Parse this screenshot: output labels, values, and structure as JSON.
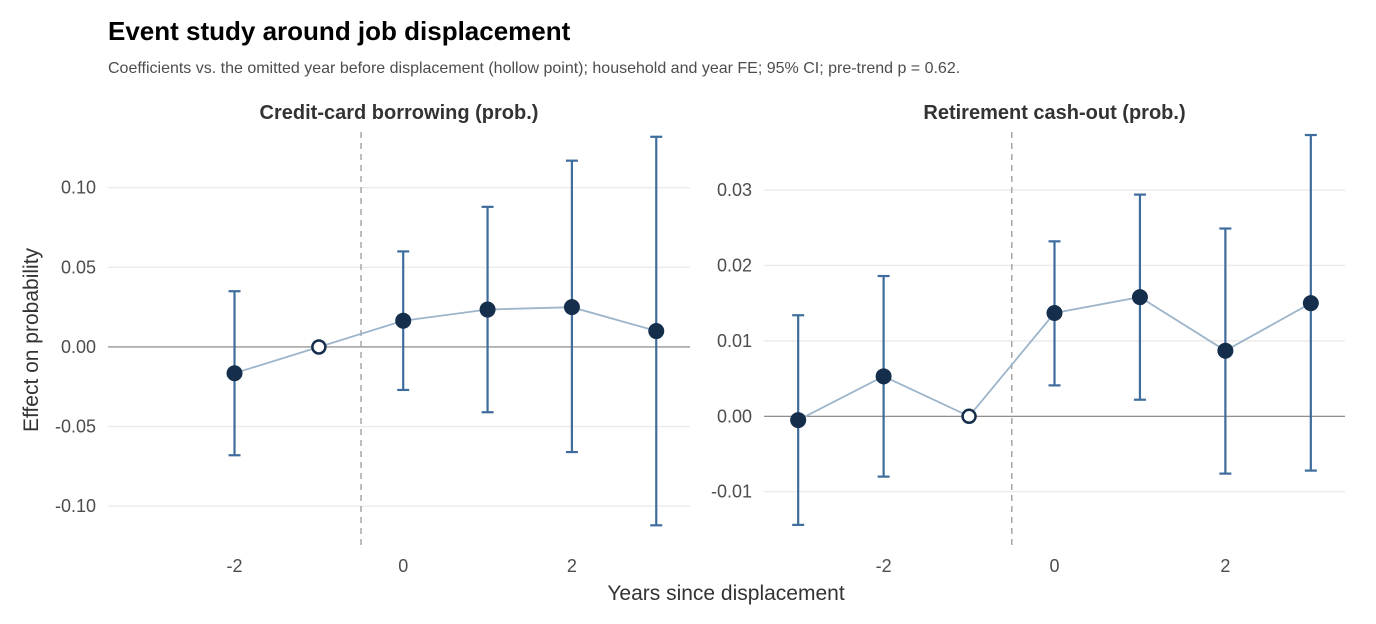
{
  "chart_data": {
    "type": "scatter",
    "title": "Event study around job displacement",
    "subtitle": "Coefficients vs. the omitted year before displacement (hollow point); household and year FE; 95% CI; pre-trend p = 0.62.",
    "xlabel": "Years since displacement",
    "ylabel": "Effect on probability",
    "grid": true,
    "reference_line": 0,
    "event_line_x": -0.5,
    "colors": {
      "point": "#142e4c",
      "errorbar": "#3e6c9c",
      "line": "#9db5ca",
      "zero": "#7f7f7f",
      "event": "#a6a6a6",
      "grid": "#ebebeb"
    },
    "panels": [
      {
        "title": "Credit-card borrowing (prob.)",
        "xlim": [
          -3.5,
          3.4
        ],
        "ylim": [
          -0.125,
          0.135
        ],
        "xticks": [
          -2,
          0,
          2
        ],
        "yticks": [
          0.1,
          0.05,
          0.0,
          -0.05,
          -0.1
        ],
        "ytick_labels": [
          "0.10",
          "0.05",
          "0.00",
          "-0.05",
          "-0.10"
        ],
        "points": [
          {
            "x": -2,
            "y": -0.0165,
            "lo": -0.068,
            "hi": 0.035,
            "omitted": false
          },
          {
            "x": -1,
            "y": 0.0,
            "lo": null,
            "hi": null,
            "omitted": true
          },
          {
            "x": 0,
            "y": 0.0165,
            "lo": -0.027,
            "hi": 0.06,
            "omitted": false
          },
          {
            "x": 1,
            "y": 0.0235,
            "lo": -0.041,
            "hi": 0.088,
            "omitted": false
          },
          {
            "x": 2,
            "y": 0.025,
            "lo": -0.066,
            "hi": 0.117,
            "omitted": false
          },
          {
            "x": 3,
            "y": 0.01,
            "lo": -0.112,
            "hi": 0.132,
            "omitted": false
          }
        ]
      },
      {
        "title": "Retirement cash-out (prob.)",
        "xlim": [
          -3.4,
          3.4
        ],
        "ylim": [
          -0.0172,
          0.0377
        ],
        "xticks": [
          -2,
          0,
          2
        ],
        "yticks": [
          0.03,
          0.02,
          0.01,
          0.0,
          -0.01
        ],
        "ytick_labels": [
          "0.03",
          "0.02",
          "0.01",
          "0.00",
          "-0.01"
        ],
        "points": [
          {
            "x": -3,
            "y": -0.0005,
            "lo": -0.0144,
            "hi": 0.0134,
            "omitted": false
          },
          {
            "x": -2,
            "y": 0.0053,
            "lo": -0.008,
            "hi": 0.0186,
            "omitted": false
          },
          {
            "x": -1,
            "y": 0.0,
            "lo": null,
            "hi": null,
            "omitted": true
          },
          {
            "x": 0,
            "y": 0.0137,
            "lo": 0.0041,
            "hi": 0.0232,
            "omitted": false
          },
          {
            "x": 1,
            "y": 0.0158,
            "lo": 0.0022,
            "hi": 0.0294,
            "omitted": false
          },
          {
            "x": 2,
            "y": 0.0087,
            "lo": -0.0076,
            "hi": 0.0249,
            "omitted": false
          },
          {
            "x": 3,
            "y": 0.015,
            "lo": -0.0072,
            "hi": 0.0373,
            "omitted": false
          }
        ]
      }
    ]
  }
}
